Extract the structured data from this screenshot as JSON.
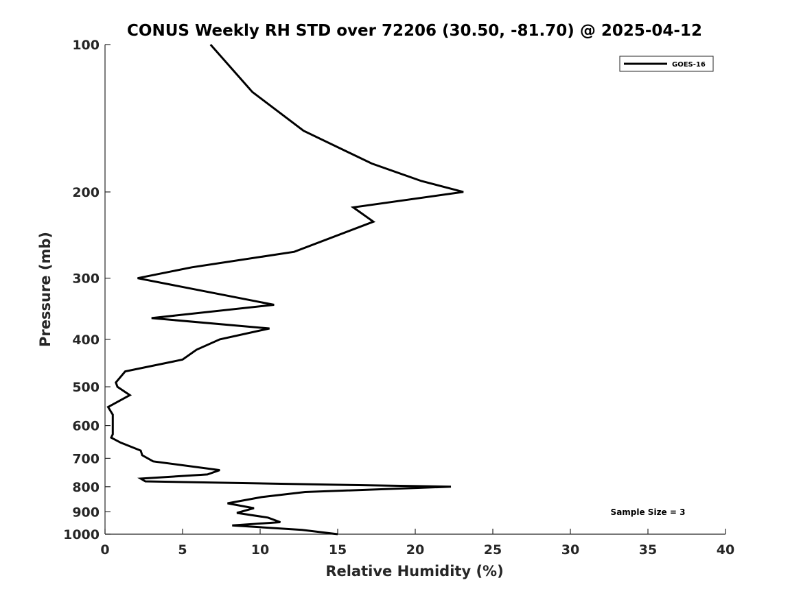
{
  "chart_data": {
    "type": "line",
    "title": "CONUS Weekly RH STD over 72206 (30.50, -81.70) @ 2025-04-12",
    "xlabel": "Relative Humidity (%)",
    "ylabel": "Pressure (mb)",
    "xlim": [
      0,
      40
    ],
    "ylim": [
      1000,
      100
    ],
    "yscale": "log",
    "xticks": [
      "0",
      "5",
      "10",
      "15",
      "20",
      "25",
      "30",
      "35",
      "40"
    ],
    "yticks": [
      "100",
      "200",
      "300",
      "400",
      "500",
      "600",
      "700",
      "800",
      "900",
      "1000"
    ],
    "grid": false,
    "legend_position": "top-right",
    "annotation": "Sample Size = 3",
    "series": [
      {
        "name": "GOES-16",
        "color": "#000000",
        "x": [
          6.8,
          9.5,
          12.8,
          17.2,
          20.4,
          23.1,
          16.0,
          17.3,
          12.2,
          5.6,
          2.1,
          10.9,
          3.0,
          10.6,
          7.4,
          5.9,
          5.0,
          1.3,
          0.7,
          0.8,
          1.6,
          0.2,
          0.5,
          0.5,
          0.5,
          0.4,
          1.0,
          2.3,
          2.4,
          3.1,
          7.4,
          6.6,
          2.3,
          2.6,
          22.3,
          12.9,
          10.1,
          7.9,
          9.6,
          8.5,
          10.5,
          11.3,
          8.2,
          12.7,
          15.0
        ],
        "y": [
          100,
          125,
          150,
          175,
          190,
          200,
          215,
          230,
          265,
          285,
          300,
          340,
          362,
          380,
          400,
          420,
          440,
          465,
          490,
          500,
          520,
          550,
          570,
          600,
          625,
          635,
          650,
          675,
          690,
          710,
          740,
          755,
          770,
          780,
          800,
          820,
          840,
          865,
          885,
          905,
          925,
          945,
          960,
          980,
          1000
        ]
      }
    ]
  }
}
